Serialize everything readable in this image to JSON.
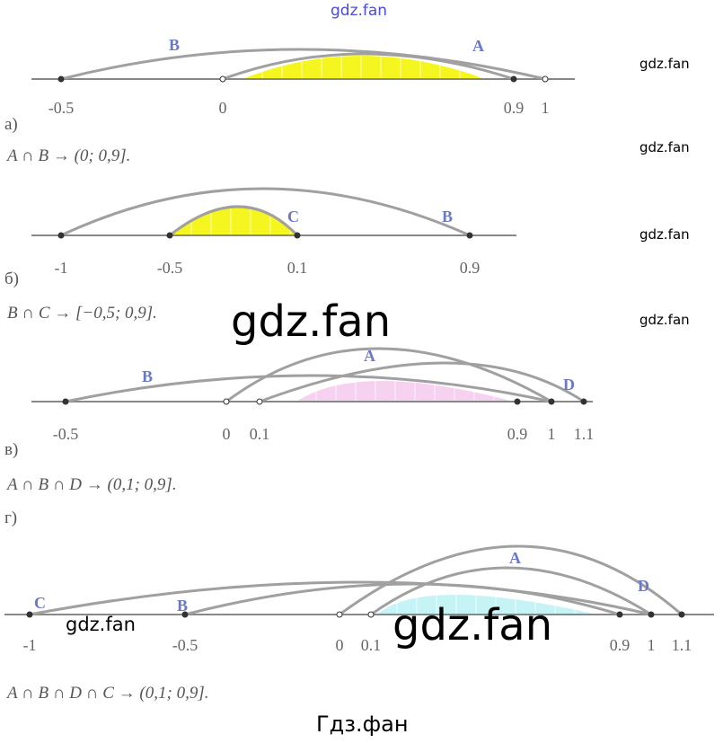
{
  "watermarks": {
    "top": "gdz.fan",
    "side": [
      "gdz.fan",
      "gdz.fan",
      "gdz.fan",
      "gdz.fan"
    ],
    "big1": "gdz.fan",
    "big2": "gdz.fan",
    "small_bottom_left": "gdz.fan",
    "footer": "Гдз.фан"
  },
  "colors": {
    "axis": "#888888",
    "arc": "#a0a0a0",
    "label": "#6a78c8",
    "yellow": "#f5f520",
    "pink": "#f6d2f0",
    "cyan": "#c6f4f6"
  },
  "parts": [
    {
      "label": "а)",
      "formula": "A ∩ B → (0; 0,9].",
      "ticks": [
        "-0.5",
        "0",
        "0.9",
        "1"
      ],
      "sets": [
        "B",
        "A"
      ],
      "fill_color": "yellow"
    },
    {
      "label": "б)",
      "formula": "B ∩ C → [−0,5; 0,9].",
      "ticks": [
        "-1",
        "-0.5",
        "0.1",
        "0.9"
      ],
      "sets": [
        "C",
        "B"
      ],
      "fill_color": "yellow"
    },
    {
      "label": "в)",
      "formula": "A ∩ B ∩ D → (0,1; 0,9].",
      "ticks": [
        "-0.5",
        "0",
        "0.1",
        "0.9",
        "1",
        "1.1"
      ],
      "sets": [
        "B",
        "A",
        "D"
      ],
      "fill_color": "pink"
    },
    {
      "label": "г)",
      "formula": "A ∩ B ∩ D ∩ C → (0,1; 0,9].",
      "ticks": [
        "-1",
        "-0.5",
        "0",
        "0.1",
        "0.9",
        "1",
        "1.1"
      ],
      "sets": [
        "C",
        "B",
        "A",
        "D"
      ],
      "fill_color": "cyan"
    }
  ]
}
